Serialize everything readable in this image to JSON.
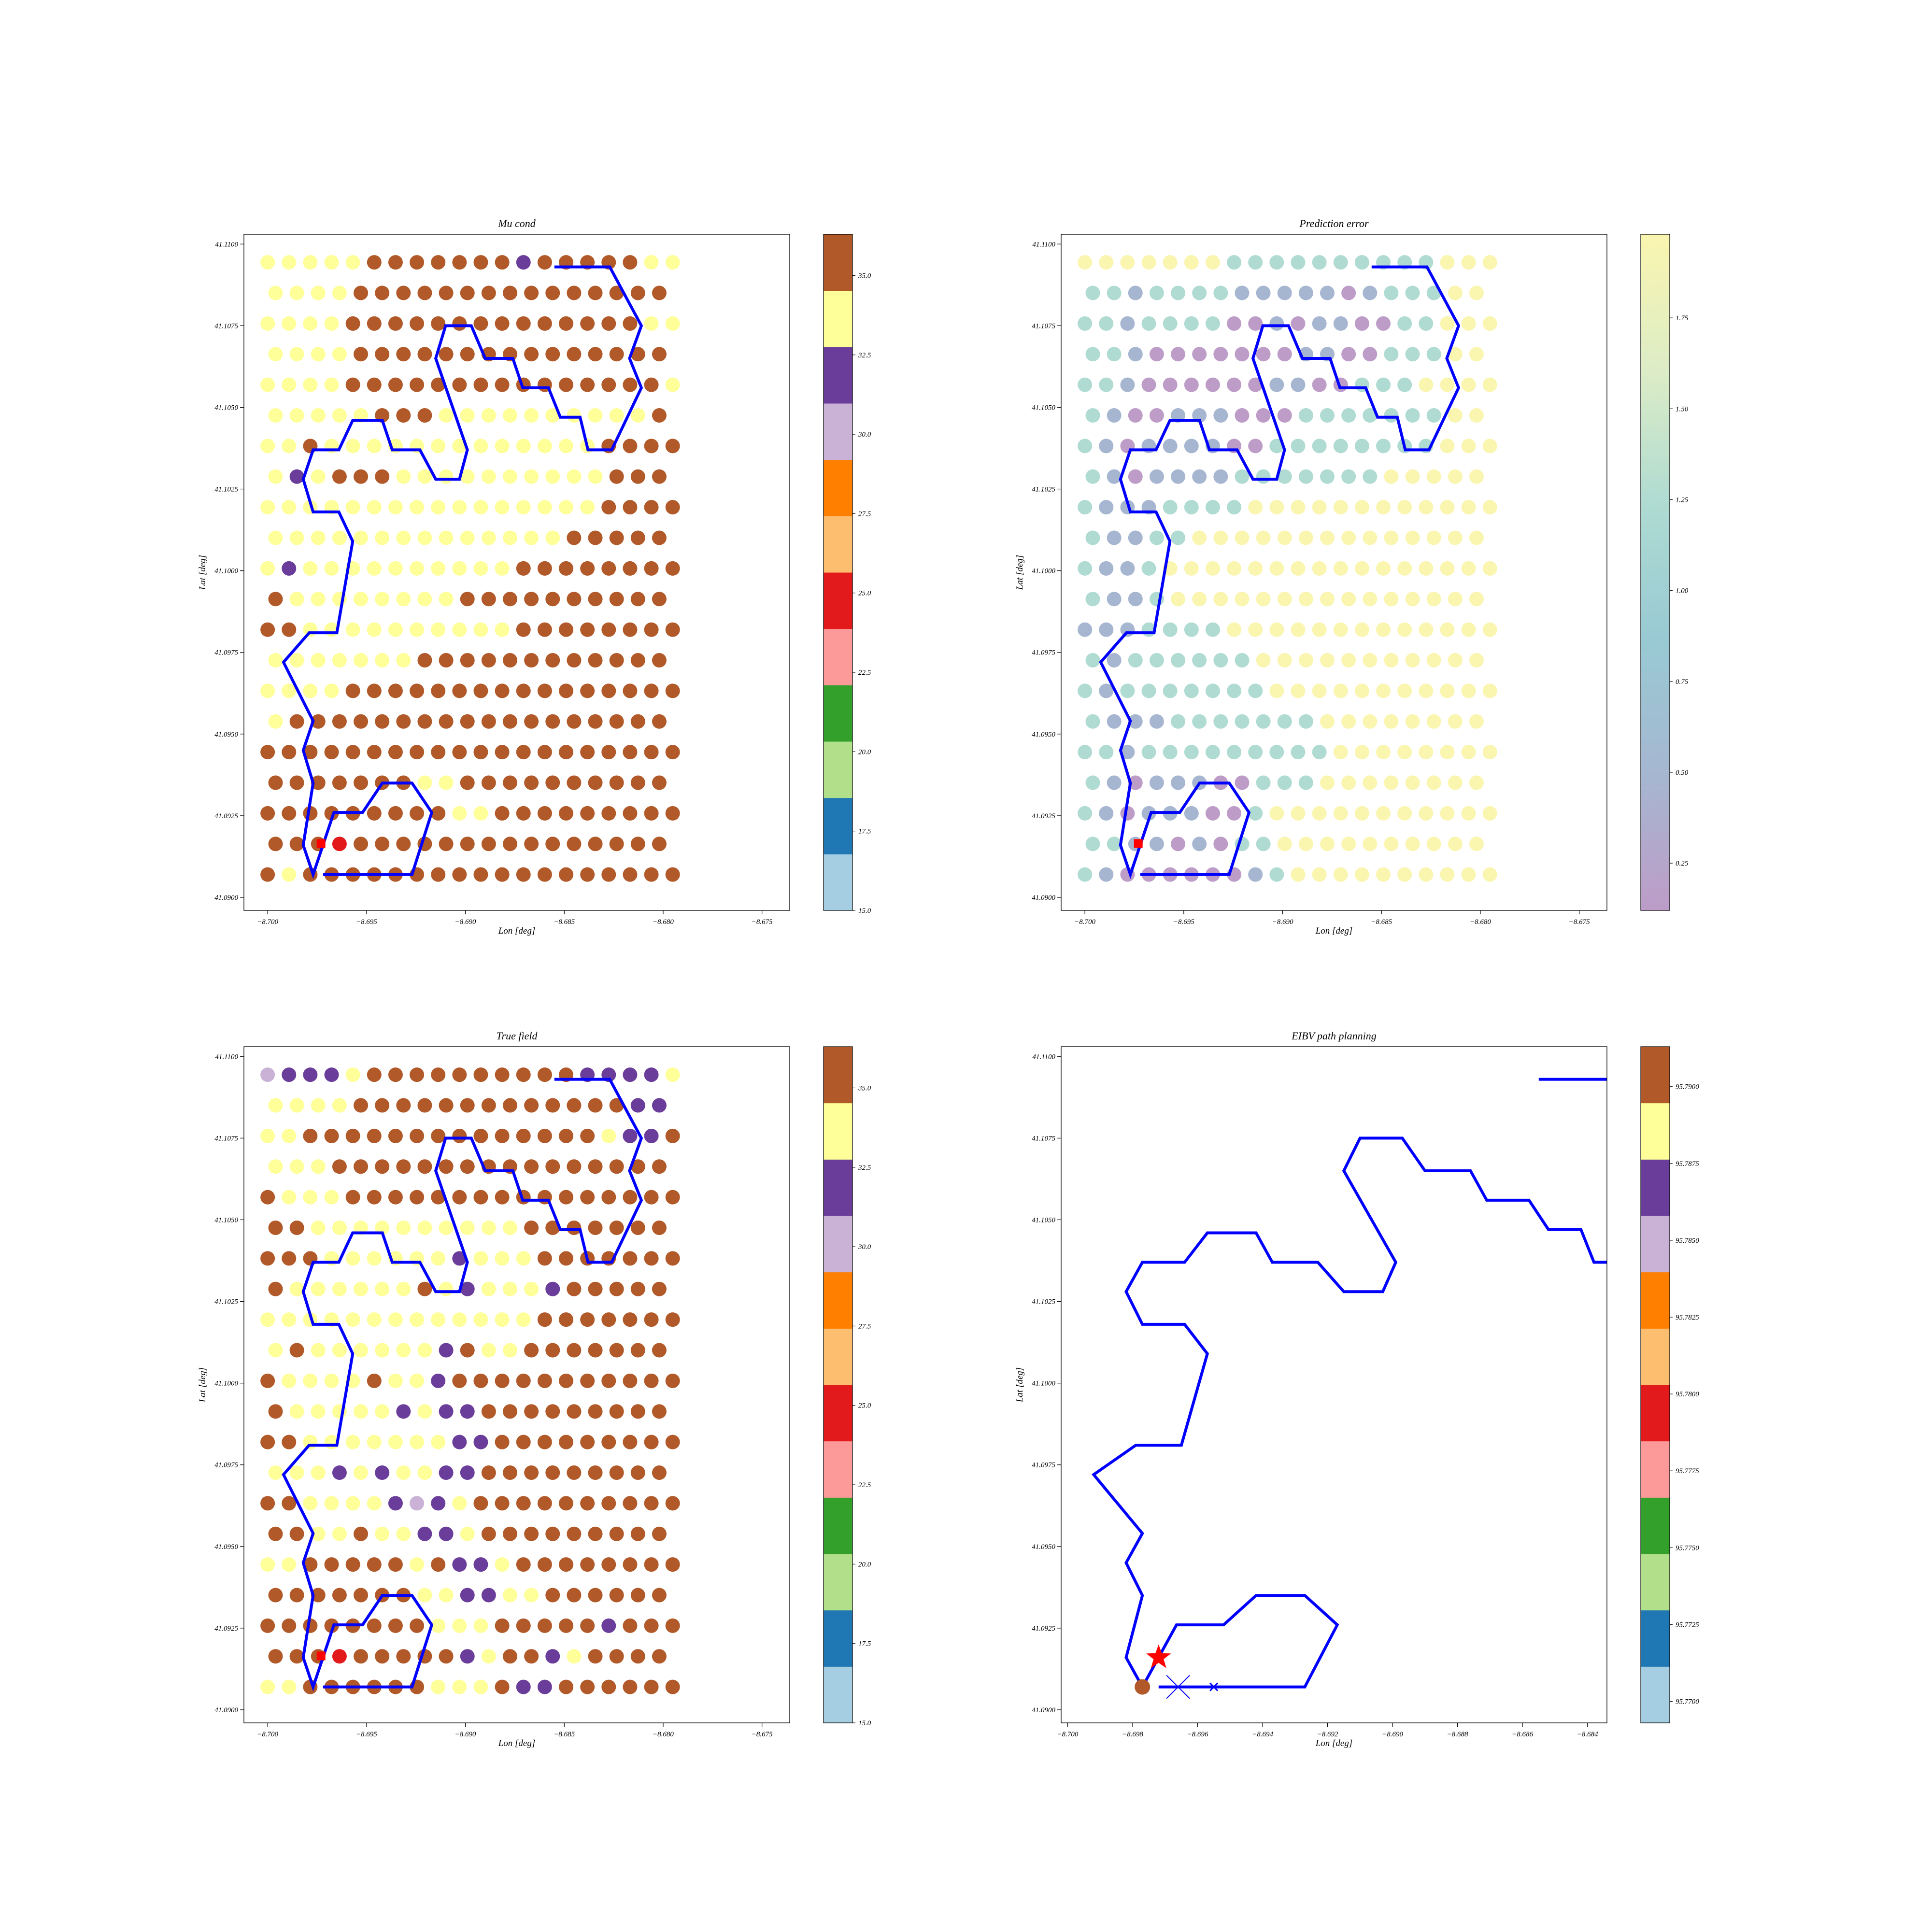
{
  "figure": {
    "background": "#ffffff"
  },
  "chart_data": [
    {
      "id": "mu",
      "type": "scatter",
      "title": "Mu cond",
      "xlabel": "Lon [deg]",
      "ylabel": "Lat [deg]",
      "xlim": [
        -8.7012,
        -8.6736
      ],
      "ylim": [
        41.0896,
        41.1103
      ],
      "xticks": [
        -8.7,
        -8.695,
        -8.69,
        -8.685,
        -8.68,
        -8.675
      ],
      "xtick_labels": [
        "−8.700",
        "−8.695",
        "−8.690",
        "−8.685",
        "−8.680",
        "−8.675"
      ],
      "yticks": [
        41.09,
        41.0925,
        41.095,
        41.0975,
        41.1,
        41.1025,
        41.105,
        41.1075,
        41.11
      ],
      "ytick_labels": [
        "41.0900",
        "41.0925",
        "41.0950",
        "41.0975",
        "41.1000",
        "41.1025",
        "41.1050",
        "41.1075",
        "41.1100"
      ],
      "grid": false,
      "colorbar": {
        "scheme": "discrete",
        "range": [
          15.0,
          36.3
        ],
        "colors": [
          "#a6cee3",
          "#1f78b4",
          "#b2df8a",
          "#33a02c",
          "#fb9a99",
          "#e31a1c",
          "#fdbf6f",
          "#ff7f00",
          "#cab2d6",
          "#6a3d9a",
          "#ffff99",
          "#b15928"
        ],
        "ticks": [
          15.0,
          17.5,
          20.0,
          22.5,
          25.0,
          27.5,
          30.0,
          32.5,
          35.0
        ],
        "tick_labels": [
          "15.0",
          "17.5",
          "20.0",
          "22.5",
          "25.0",
          "27.5",
          "30.0",
          "32.5",
          "35.0"
        ]
      },
      "grid_points": {
        "lon_even": -8.7,
        "lon_odd": -8.6996,
        "lon_step": 0.001078,
        "columns": 20,
        "lat_start": 41.0907,
        "lat_step": 0.000937,
        "rows": [
          "BYBBBBBBBBBBBBBBBBBB",
          "BBBRBBBBBBBBBBBBBBBB",
          "BBBBBBBBBYYBBBBBBBBB",
          "BBBBBBBYYBBBBBBBBBBB",
          "BBBBBBBBBBBBBBBBBBBB",
          "YBBBBBBBBBBBBBBBBBBB",
          "YYYYBBBBBBBBBBBBBBBB",
          "YYYYYYYBBBBBBBBBBBBB",
          "BBYYYYYYYYYYBBBBBBBB",
          "BYYYYYYYYBBBBBBBBBBB",
          "YPYYYYYYYYYYBBBBBBBB",
          "YYYYYYYYYYYYYYBBBBBB",
          "YYYYYYYYYYYYYYYYBBBB",
          "YPYBBBYYYYYYYYYYBBBB",
          "YYBYYYYYYYYYYYYYBBBB",
          "YYYYYBBBYYYYYYYYYYBB",
          "YYYYBBBBBBBBBBBBBBBY",
          "YYYYBBBBBBBBBBBBBBBY",
          "YYYYBBBBBBBBBBBBBBYY",
          "YYYYBBBBBBBBBBBBBBBY",
          "YYYYYBBBBBBBPBBBBBYY"
        ],
        "codes": {
          "Y": "#ffff99",
          "B": "#b15928",
          "P": "#6a3d9a",
          "R": "#e31a1c"
        },
        "overrides": []
      },
      "markers": [
        {
          "shape": "square",
          "lon": -8.6973,
          "lat": 41.09165,
          "color": "#ff0000"
        }
      ]
    },
    {
      "id": "err",
      "type": "scatter",
      "title": "Prediction error",
      "xlabel": "Lon [deg]",
      "ylabel": "Lat [deg]",
      "xlim": [
        -8.7012,
        -8.6736
      ],
      "ylim": [
        41.0896,
        41.1103
      ],
      "xticks": [
        -8.7,
        -8.695,
        -8.69,
        -8.685,
        -8.68,
        -8.675
      ],
      "xtick_labels": [
        "−8.700",
        "−8.695",
        "−8.690",
        "−8.685",
        "−8.680",
        "−8.675"
      ],
      "yticks": [
        41.09,
        41.0925,
        41.095,
        41.0975,
        41.1,
        41.1025,
        41.105,
        41.1075,
        41.11
      ],
      "ytick_labels": [
        "41.0900",
        "41.0925",
        "41.0950",
        "41.0975",
        "41.1000",
        "41.1025",
        "41.1050",
        "41.1075",
        "41.1100"
      ],
      "grid": false,
      "colorbar": {
        "scheme": "continuous",
        "range": [
          0.12,
          1.98
        ],
        "colors": [
          "#915aa3",
          "#6a86b2",
          "#54a6b6",
          "#79c3b4",
          "#c6e0a0",
          "#f6ef7a"
        ],
        "ticks": [
          0.25,
          0.5,
          0.75,
          1.0,
          1.25,
          1.5,
          1.75
        ],
        "tick_labels": [
          "0.25",
          "0.50",
          "0.75",
          "1.00",
          "1.25",
          "1.50",
          "1.75"
        ],
        "opacity": 0.6
      },
      "grid_points": {
        "lon_even": -8.7,
        "lon_odd": -8.6996,
        "lon_step": 0.001078,
        "columns": 20,
        "lat_start": 41.0907,
        "lat_step": 0.000937,
        "rows": [
          "TSPPPPPPSTVVVVVVVVVV",
          "TTSSPSPTTVVVVVVVVVVV",
          "TSPSSSPPTVVVVVVVVVVV",
          "TSPSSSPPTTTVVVVVVVVV",
          "TTSTTTTTTTTTVVVVVVVV",
          "TSSSTTTTTTTVVVVVVVVV",
          "TSTTTTTTTVVVVVVVVVVV",
          "TSTTTTTTVVVVVVVVVVVV",
          "SSSTTTTVVVVVVVVVVVVV",
          "TSSTVVVVVVVVVVVVVVVV",
          "TSSTVVVVVVVVVVVVVVVV",
          "TSSTTVVVVVVVVVVVVVVV",
          "TSSSTTTTVVVVVVVVVVVV",
          "TSPSSSSTTTTTTTVVVVVV",
          "TSPSSSSPPTTTTTTTTVVV",
          "TSPPSSSPPPTTTTTTTVVV",
          "TTSPPPPPPSSPPTTTVVVV",
          "TTSPPPPPPPSSPPTTTVVV",
          "TTSTTTTPPSPSSPPTTVVV",
          "TTSTTTTSSSSSPSTTTVVV",
          "VVVVVVVTTTTTTTTTTVVV"
        ],
        "codes": {
          "V": "#f6ef7a",
          "T": "#79c3b4",
          "S": "#6a86b2",
          "P": "#915aa3"
        },
        "overrides": []
      },
      "markers": [
        {
          "shape": "square",
          "lon": -8.6973,
          "lat": 41.09165,
          "color": "#ff0000"
        }
      ]
    },
    {
      "id": "true",
      "type": "scatter",
      "title": "True field",
      "xlabel": "Lon [deg]",
      "ylabel": "Lat [deg]",
      "xlim": [
        -8.7012,
        -8.6736
      ],
      "ylim": [
        41.0896,
        41.1103
      ],
      "xticks": [
        -8.7,
        -8.695,
        -8.69,
        -8.685,
        -8.68,
        -8.675
      ],
      "xtick_labels": [
        "−8.700",
        "−8.695",
        "−8.690",
        "−8.685",
        "−8.680",
        "−8.675"
      ],
      "yticks": [
        41.09,
        41.0925,
        41.095,
        41.0975,
        41.1,
        41.1025,
        41.105,
        41.1075,
        41.11
      ],
      "ytick_labels": [
        "41.0900",
        "41.0925",
        "41.0950",
        "41.0975",
        "41.1000",
        "41.1025",
        "41.1050",
        "41.1075",
        "41.1100"
      ],
      "grid": false,
      "colorbar": {
        "scheme": "discrete",
        "range": [
          15.0,
          36.3
        ],
        "colors": [
          "#a6cee3",
          "#1f78b4",
          "#b2df8a",
          "#33a02c",
          "#fb9a99",
          "#e31a1c",
          "#fdbf6f",
          "#ff7f00",
          "#cab2d6",
          "#6a3d9a",
          "#ffff99",
          "#b15928"
        ],
        "ticks": [
          15.0,
          17.5,
          20.0,
          22.5,
          25.0,
          27.5,
          30.0,
          32.5,
          35.0
        ],
        "tick_labels": [
          "15.0",
          "17.5",
          "20.0",
          "22.5",
          "25.0",
          "27.5",
          "30.0",
          "32.5",
          "35.0"
        ]
      },
      "grid_points": {
        "lon_even": -8.7,
        "lon_odd": -8.6996,
        "lon_step": 0.001078,
        "columns": 20,
        "lat_start": 41.0907,
        "lat_step": 0.000937,
        "rows": [
          "YYBBBBBBYYYBPPBBBBBB",
          "BBBRBBBBBPYBBPYBBBBB",
          "BBBBBBBBYYYBBBBBPBBB",
          "BBBBBBBYYPPYYBBBBBBB",
          "YYBBBBBYBPPYBBBBBBBB",
          "BBYYBYYPPYBBBBBBBBBB",
          "BBYYYYPLPYBBBBBBBBBB",
          "YYYPYPYYPPBBBBBBBBBB",
          "BBYYYYYYYPPBBBBBBBBB",
          "BYYYYYPYPPBBBBBBBBBB",
          "BYYYYBYYPBBBBBBBBBBB",
          "YBYYYYYYPBYYBBBBBBBB",
          "YYYYYYYYYYYYYBBBBBBB",
          "BYYYYYYBYPYYYPBBBBBB",
          "BBBYYYYYYPYYYBBBBBBB",
          "BBYYYYYYYYYYBBBBBBBB",
          "BYYYBBBBBBBBBBBBBBBB",
          "YYYBBBBBBBBBBBBBBBBB",
          "YYBBBBBBBBBBBBBBYPPB",
          "YYYYBBBBBBBBBBBBBPPP",
          "LPPPYBBBBBBBBBBPPPPY"
        ],
        "codes": {
          "Y": "#ffff99",
          "B": "#b15928",
          "P": "#6a3d9a",
          "L": "#cab2d6",
          "R": "#e31a1c"
        },
        "overrides": []
      },
      "markers": [
        {
          "shape": "square",
          "lon": -8.6973,
          "lat": 41.09165,
          "color": "#ff0000"
        }
      ]
    },
    {
      "id": "eibv",
      "type": "line",
      "title": "EIBV path planning",
      "xlabel": "Lon [deg]",
      "ylabel": "Lat [deg]",
      "xlim": [
        -8.7002,
        -8.6834
      ],
      "ylim": [
        41.0896,
        41.1103
      ],
      "xticks": [
        -8.7,
        -8.698,
        -8.696,
        -8.694,
        -8.692,
        -8.69,
        -8.688,
        -8.686,
        -8.684
      ],
      "xtick_labels": [
        "−8.700",
        "−8.698",
        "−8.696",
        "−8.694",
        "−8.692",
        "−8.690",
        "−8.688",
        "−8.686",
        "−8.684"
      ],
      "yticks": [
        41.09,
        41.0925,
        41.095,
        41.0975,
        41.1,
        41.1025,
        41.105,
        41.1075,
        41.11
      ],
      "ytick_labels": [
        "41.0900",
        "41.0925",
        "41.0950",
        "41.0975",
        "41.1000",
        "41.1025",
        "41.1050",
        "41.1075",
        "41.1100"
      ],
      "grid": false,
      "colorbar": {
        "scheme": "discrete",
        "range": [
          95.7693,
          95.7913
        ],
        "colors": [
          "#a6cee3",
          "#1f78b4",
          "#b2df8a",
          "#33a02c",
          "#fb9a99",
          "#e31a1c",
          "#fdbf6f",
          "#ff7f00",
          "#cab2d6",
          "#6a3d9a",
          "#ffff99",
          "#b15928"
        ],
        "ticks": [
          95.77,
          95.7725,
          95.775,
          95.7775,
          95.78,
          95.7825,
          95.785,
          95.7875,
          95.79
        ],
        "tick_labels": [
          "95.7700",
          "95.7725",
          "95.7750",
          "95.7775",
          "95.7800",
          "95.7825",
          "95.7850",
          "95.7875",
          "95.7900"
        ]
      },
      "grid_points": null,
      "markers": [
        {
          "shape": "dot",
          "lon": -8.6977,
          "lat": 41.0907,
          "color": "#b15928"
        },
        {
          "shape": "star",
          "lon": -8.6972,
          "lat": 41.0916,
          "color": "#ff0000"
        },
        {
          "shape": "x-large",
          "lon": -8.6966,
          "lat": 41.0907,
          "color": "#0000ff"
        },
        {
          "shape": "x-small",
          "lon": -8.6955,
          "lat": 41.0907,
          "color": "#0000ff"
        }
      ]
    }
  ],
  "path": {
    "color": "#0000ff",
    "points": [
      [
        -8.6972,
        41.0907
      ],
      [
        -8.6966,
        41.0907
      ],
      [
        -8.6955,
        41.0907
      ],
      [
        -8.6927,
        41.0907
      ],
      [
        -8.6917,
        41.0926
      ],
      [
        -8.6927,
        41.0935
      ],
      [
        -8.6942,
        41.0935
      ],
      [
        -8.6952,
        41.0926
      ],
      [
        -8.69665,
        41.0926
      ],
      [
        -8.6977,
        41.0907
      ],
      [
        -8.6982,
        41.0916
      ],
      [
        -8.6977,
        41.0935
      ],
      [
        -8.6982,
        41.0945
      ],
      [
        -8.6977,
        41.0954
      ],
      [
        -8.6992,
        41.0972
      ],
      [
        -8.6979,
        41.0981
      ],
      [
        -8.6965,
        41.0981
      ],
      [
        -8.6957,
        41.1009
      ],
      [
        -8.6964,
        41.1018
      ],
      [
        -8.6977,
        41.1018
      ],
      [
        -8.6982,
        41.1028
      ],
      [
        -8.6977,
        41.1037
      ],
      [
        -8.6964,
        41.1037
      ],
      [
        -8.6957,
        41.1046
      ],
      [
        -8.6942,
        41.1046
      ],
      [
        -8.6937,
        41.1037
      ],
      [
        -8.6923,
        41.1037
      ],
      [
        -8.6915,
        41.1028
      ],
      [
        -8.6903,
        41.1028
      ],
      [
        -8.6899,
        41.1037
      ],
      [
        -8.6915,
        41.1065
      ],
      [
        -8.691,
        41.1075
      ],
      [
        -8.6897,
        41.1075
      ],
      [
        -8.689,
        41.1065
      ],
      [
        -8.6876,
        41.1065
      ],
      [
        -8.6871,
        41.1056
      ],
      [
        -8.6858,
        41.1056
      ],
      [
        -8.6852,
        41.1047
      ],
      [
        -8.6842,
        41.1047
      ],
      [
        -8.6838,
        41.1037
      ],
      [
        -8.6826,
        41.1037
      ],
      [
        -8.6811,
        41.1056
      ],
      [
        -8.6817,
        41.1065
      ],
      [
        -8.6811,
        41.1075
      ],
      [
        -8.6827,
        41.1093
      ],
      [
        -8.6855,
        41.1093
      ]
    ]
  }
}
